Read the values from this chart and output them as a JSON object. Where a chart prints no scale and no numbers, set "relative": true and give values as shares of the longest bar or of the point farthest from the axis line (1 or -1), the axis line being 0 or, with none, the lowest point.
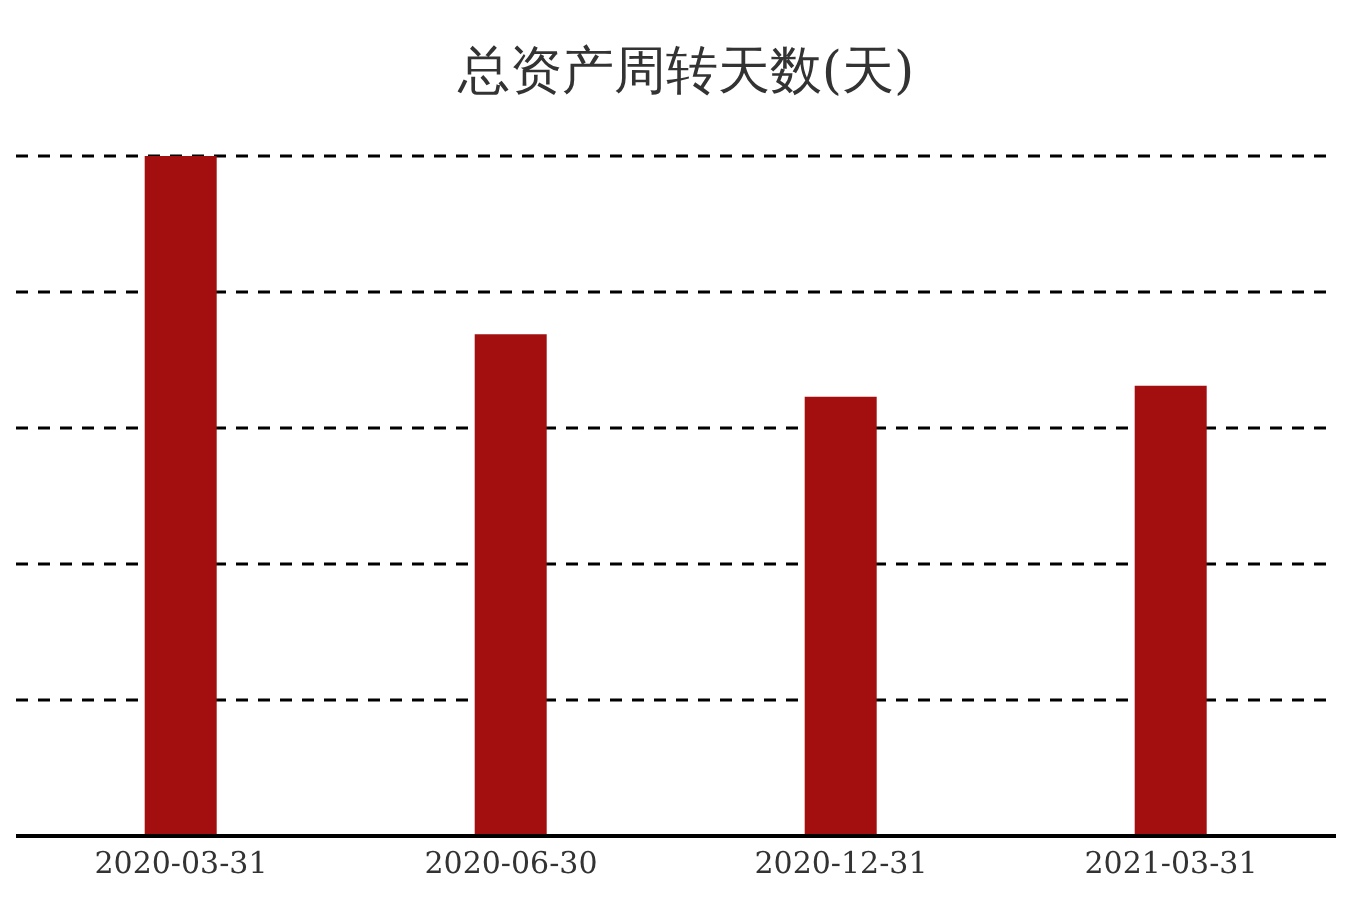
{
  "chart_data": {
    "type": "bar",
    "title": "总资产周转天数(天)",
    "categories": [
      "2020-03-31",
      "2020-06-30",
      "2020-12-31",
      "2021-03-31"
    ],
    "values": [
      1,
      0.738,
      0.646,
      0.662
    ],
    "color": "#a30f0f",
    "relative": true,
    "grid": "y"
  }
}
